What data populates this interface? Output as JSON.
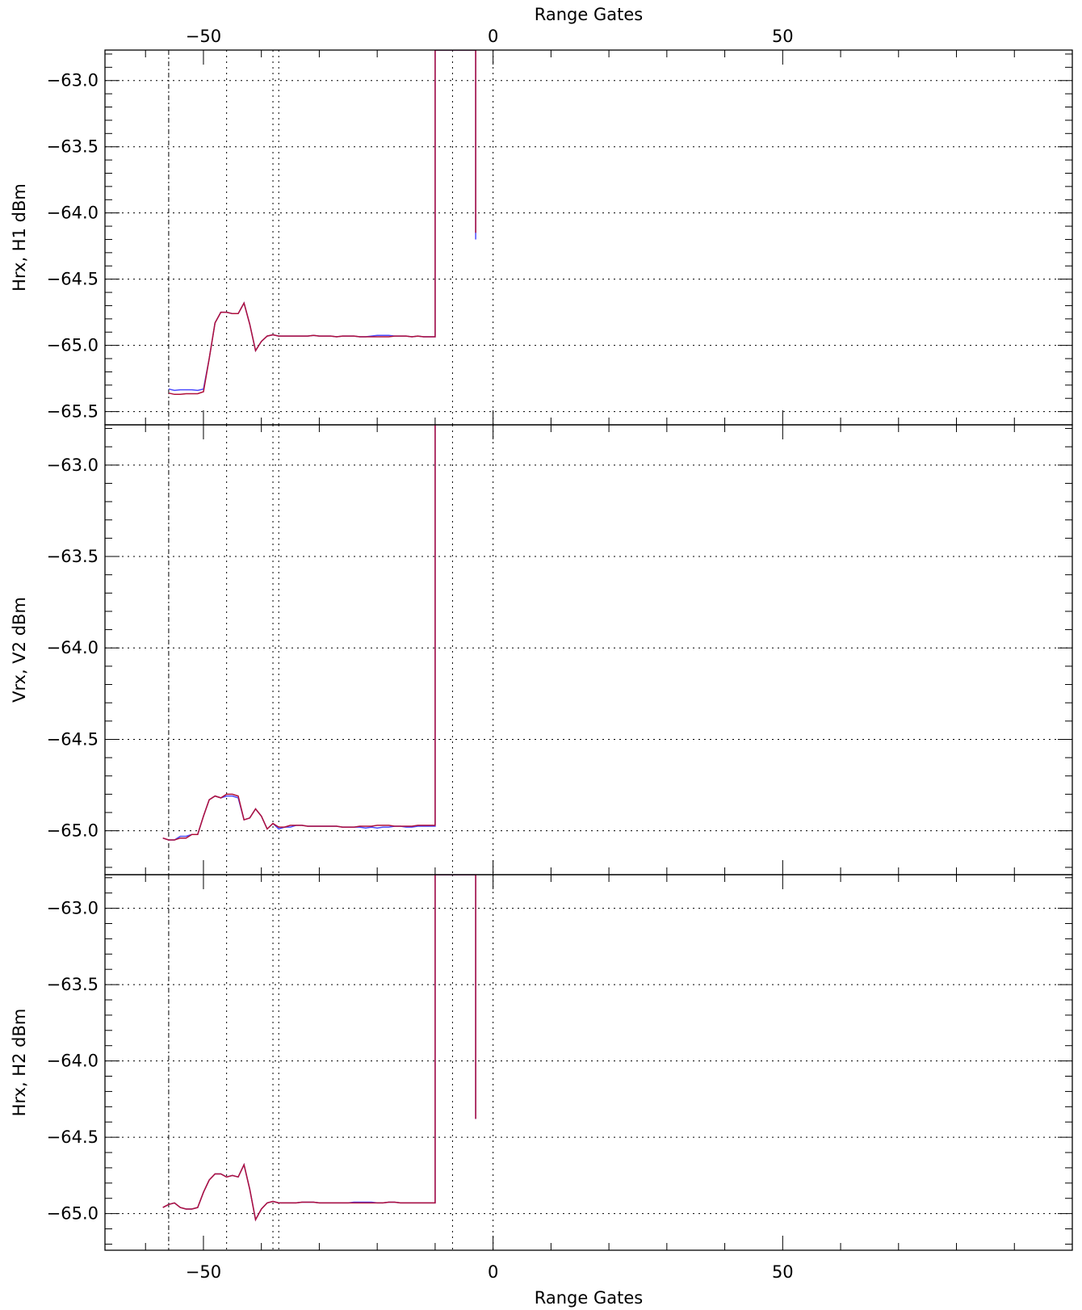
{
  "chart_data": [
    {
      "type": "line",
      "ylabel": "Hrx, H1 dBm",
      "xlabel_top": "Range Gates",
      "xlim": [
        -67,
        100
      ],
      "ylim": [
        -65.6,
        -62.77
      ],
      "xticks": [
        -50,
        0,
        50
      ],
      "yticks": [
        -63.0,
        -63.5,
        -64.0,
        -64.5,
        -65.0,
        -65.5
      ],
      "vlines": [
        -56,
        -46,
        -38,
        -37,
        -7,
        0
      ],
      "series": [
        {
          "color": "#4b4bff",
          "x": [
            -56,
            -55,
            -54,
            -53,
            -52,
            -51,
            -50,
            -49,
            -48,
            -47,
            -46,
            -45,
            -44,
            -43,
            -42,
            -41,
            -40,
            -39,
            -38,
            -37,
            -36,
            -35,
            -34,
            -33,
            -32,
            -31,
            -30,
            -29,
            -28,
            -27,
            -26,
            -25,
            -24,
            -23,
            -22,
            -21,
            -20,
            -19,
            -18,
            -17,
            -16,
            -15,
            -14,
            -13,
            -12,
            -11,
            -10,
            -10,
            -3,
            -3
          ],
          "y": [
            -65.33,
            -65.34,
            -65.335,
            -65.335,
            -65.335,
            -65.34,
            -65.33,
            -65.1,
            -64.83,
            -64.75,
            -64.75,
            -64.76,
            -64.76,
            -64.68,
            -64.84,
            -65.04,
            -64.97,
            -64.93,
            -64.92,
            -64.93,
            -64.93,
            -64.93,
            -64.93,
            -64.93,
            -64.93,
            -64.925,
            -64.93,
            -64.93,
            -64.93,
            -64.935,
            -64.93,
            -64.93,
            -64.93,
            -64.935,
            -64.935,
            -64.93,
            -64.925,
            -64.925,
            -64.925,
            -64.93,
            -64.93,
            -64.93,
            -64.935,
            -64.93,
            -64.935,
            -64.935,
            -64.935,
            -62.77,
            -62.77,
            -64.2
          ]
        },
        {
          "color": "#b0103a",
          "x": [
            -56,
            -55,
            -54,
            -53,
            -52,
            -51,
            -50,
            -49,
            -48,
            -47,
            -46,
            -45,
            -44,
            -43,
            -42,
            -41,
            -40,
            -39,
            -38,
            -37,
            -36,
            -35,
            -34,
            -33,
            -32,
            -31,
            -30,
            -29,
            -28,
            -27,
            -26,
            -25,
            -24,
            -23,
            -22,
            -21,
            -20,
            -19,
            -18,
            -17,
            -16,
            -15,
            -14,
            -13,
            -12,
            -11,
            -10,
            -10,
            -3,
            -3
          ],
          "y": [
            -65.36,
            -65.37,
            -65.37,
            -65.365,
            -65.365,
            -65.365,
            -65.35,
            -65.1,
            -64.83,
            -64.75,
            -64.75,
            -64.76,
            -64.76,
            -64.68,
            -64.84,
            -65.04,
            -64.97,
            -64.93,
            -64.92,
            -64.93,
            -64.93,
            -64.93,
            -64.93,
            -64.93,
            -64.93,
            -64.925,
            -64.93,
            -64.93,
            -64.93,
            -64.935,
            -64.93,
            -64.93,
            -64.93,
            -64.935,
            -64.935,
            -64.935,
            -64.935,
            -64.935,
            -64.935,
            -64.93,
            -64.93,
            -64.93,
            -64.935,
            -64.93,
            -64.935,
            -64.935,
            -64.935,
            -62.77,
            -62.77,
            -64.15
          ]
        }
      ]
    },
    {
      "type": "line",
      "ylabel": "Vrx, V2 dBm",
      "xlim": [
        -67,
        100
      ],
      "ylim": [
        -65.24,
        -62.78
      ],
      "xticks": [
        -50,
        0,
        50
      ],
      "yticks": [
        -63.0,
        -63.5,
        -64.0,
        -64.5,
        -65.0
      ],
      "vlines": [
        -56,
        -46,
        -38,
        -37,
        -7,
        0
      ],
      "series": [
        {
          "color": "#4b4bff",
          "x": [
            -57,
            -56,
            -55,
            -54,
            -53,
            -52,
            -51,
            -50,
            -49,
            -48,
            -47,
            -46,
            -45,
            -44,
            -43,
            -42,
            -41,
            -40,
            -39,
            -38,
            -37,
            -36,
            -35,
            -34,
            -33,
            -32,
            -31,
            -30,
            -29,
            -28,
            -27,
            -26,
            -25,
            -24,
            -23,
            -22,
            -21,
            -20,
            -19,
            -18,
            -17,
            -16,
            -15,
            -14,
            -13,
            -12,
            -11,
            -10,
            -10
          ],
          "y": [
            -65.04,
            -65.05,
            -65.05,
            -65.03,
            -65.03,
            -65.02,
            -65.02,
            -64.92,
            -64.83,
            -64.81,
            -64.82,
            -64.81,
            -64.81,
            -64.82,
            -64.94,
            -64.93,
            -64.88,
            -64.92,
            -64.99,
            -64.96,
            -64.99,
            -64.98,
            -64.98,
            -64.97,
            -64.97,
            -64.975,
            -64.975,
            -64.975,
            -64.975,
            -64.975,
            -64.975,
            -64.98,
            -64.98,
            -64.98,
            -64.98,
            -64.985,
            -64.98,
            -64.985,
            -64.98,
            -64.98,
            -64.975,
            -64.975,
            -64.98,
            -64.98,
            -64.975,
            -64.975,
            -64.975,
            -64.975,
            -62.78
          ]
        },
        {
          "color": "#b0103a",
          "x": [
            -57,
            -56,
            -55,
            -54,
            -53,
            -52,
            -51,
            -50,
            -49,
            -48,
            -47,
            -46,
            -45,
            -44,
            -43,
            -42,
            -41,
            -40,
            -39,
            -38,
            -37,
            -36,
            -35,
            -34,
            -33,
            -32,
            -31,
            -30,
            -29,
            -28,
            -27,
            -26,
            -25,
            -24,
            -23,
            -22,
            -21,
            -20,
            -19,
            -18,
            -17,
            -16,
            -15,
            -14,
            -13,
            -12,
            -11,
            -10,
            -10
          ],
          "y": [
            -65.04,
            -65.05,
            -65.05,
            -65.04,
            -65.04,
            -65.02,
            -65.02,
            -64.92,
            -64.83,
            -64.81,
            -64.82,
            -64.8,
            -64.8,
            -64.81,
            -64.94,
            -64.93,
            -64.88,
            -64.92,
            -64.99,
            -64.96,
            -64.98,
            -64.98,
            -64.97,
            -64.97,
            -64.97,
            -64.975,
            -64.975,
            -64.975,
            -64.975,
            -64.975,
            -64.975,
            -64.98,
            -64.98,
            -64.98,
            -64.975,
            -64.975,
            -64.975,
            -64.97,
            -64.97,
            -64.97,
            -64.975,
            -64.975,
            -64.975,
            -64.975,
            -64.97,
            -64.97,
            -64.97,
            -64.97,
            -62.78
          ]
        }
      ]
    },
    {
      "type": "line",
      "ylabel": "Hrx, H2 dBm",
      "xlabel": "Range Gates",
      "xlim": [
        -67,
        100
      ],
      "ylim": [
        -65.24,
        -62.78
      ],
      "xticks": [
        -50,
        0,
        50
      ],
      "yticks": [
        -63.0,
        -63.5,
        -64.0,
        -64.5,
        -65.0
      ],
      "vlines": [
        -56,
        -46,
        -38,
        -37,
        -7,
        0
      ],
      "series": [
        {
          "color": "#4b4bff",
          "x": [
            -57,
            -56,
            -55,
            -54,
            -53,
            -52,
            -51,
            -50,
            -49,
            -48,
            -47,
            -46,
            -45,
            -44,
            -43,
            -42,
            -41,
            -40,
            -39,
            -38,
            -37,
            -36,
            -35,
            -34,
            -33,
            -32,
            -31,
            -30,
            -29,
            -28,
            -27,
            -26,
            -25,
            -24,
            -23,
            -22,
            -21,
            -20,
            -19,
            -18,
            -17,
            -16,
            -15,
            -14,
            -13,
            -12,
            -11,
            -10,
            -10,
            -3,
            -3
          ],
          "y": [
            -64.96,
            -64.94,
            -64.93,
            -64.96,
            -64.97,
            -64.97,
            -64.96,
            -64.86,
            -64.78,
            -64.74,
            -64.74,
            -64.76,
            -64.75,
            -64.76,
            -64.68,
            -64.84,
            -65.04,
            -64.97,
            -64.93,
            -64.92,
            -64.93,
            -64.93,
            -64.93,
            -64.93,
            -64.925,
            -64.925,
            -64.925,
            -64.93,
            -64.93,
            -64.93,
            -64.93,
            -64.93,
            -64.93,
            -64.925,
            -64.925,
            -64.925,
            -64.925,
            -64.93,
            -64.93,
            -64.925,
            -64.925,
            -64.93,
            -64.93,
            -64.93,
            -64.93,
            -64.93,
            -64.93,
            -64.93,
            -62.78,
            -62.78,
            -64.38
          ]
        },
        {
          "color": "#b0103a",
          "x": [
            -57,
            -56,
            -55,
            -54,
            -53,
            -52,
            -51,
            -50,
            -49,
            -48,
            -47,
            -46,
            -45,
            -44,
            -43,
            -42,
            -41,
            -40,
            -39,
            -38,
            -37,
            -36,
            -35,
            -34,
            -33,
            -32,
            -31,
            -30,
            -29,
            -28,
            -27,
            -26,
            -25,
            -24,
            -23,
            -22,
            -21,
            -20,
            -19,
            -18,
            -17,
            -16,
            -15,
            -14,
            -13,
            -12,
            -11,
            -10,
            -10,
            -3,
            -3
          ],
          "y": [
            -64.96,
            -64.94,
            -64.93,
            -64.96,
            -64.97,
            -64.97,
            -64.96,
            -64.86,
            -64.78,
            -64.74,
            -64.74,
            -64.76,
            -64.75,
            -64.76,
            -64.68,
            -64.84,
            -65.04,
            -64.97,
            -64.93,
            -64.92,
            -64.93,
            -64.93,
            -64.93,
            -64.93,
            -64.925,
            -64.925,
            -64.925,
            -64.93,
            -64.93,
            -64.93,
            -64.93,
            -64.93,
            -64.93,
            -64.93,
            -64.93,
            -64.93,
            -64.93,
            -64.93,
            -64.93,
            -64.925,
            -64.925,
            -64.93,
            -64.93,
            -64.93,
            -64.93,
            -64.93,
            -64.93,
            -64.93,
            -62.78,
            -62.78,
            -64.38
          ]
        }
      ]
    }
  ]
}
